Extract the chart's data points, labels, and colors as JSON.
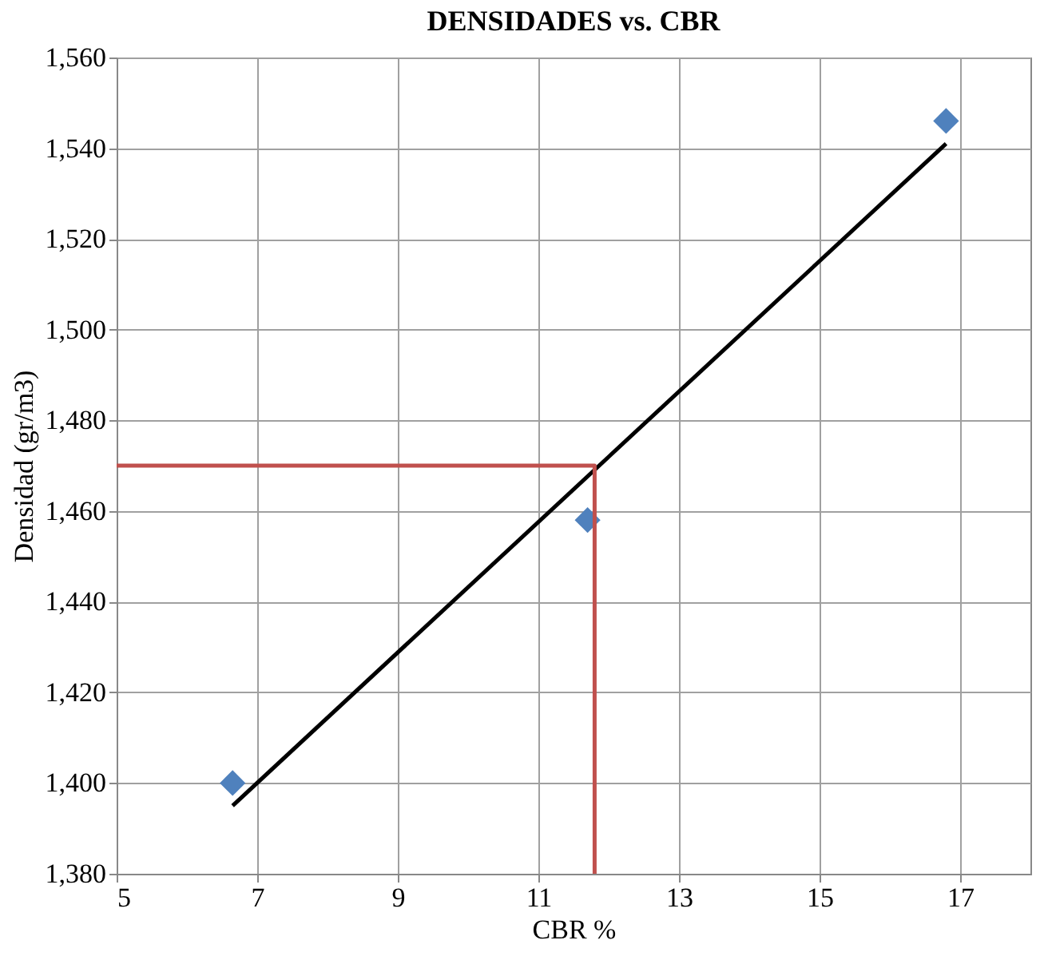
{
  "chart_data": {
    "type": "scatter",
    "title": "DENSIDADES  vs. CBR",
    "xlabel": "CBR %",
    "ylabel": "Densidad (gr/m3)",
    "x": [
      6.65,
      11.7,
      16.8
    ],
    "series": [
      {
        "color": "#4f81bd",
        "marker": "diamond",
        "values": [
          1400,
          1458,
          1546
        ]
      },
      {
        "type": "line",
        "color": "#000000",
        "marker": "none",
        "line_style": "solid",
        "x": [
          6.65,
          16.8
        ],
        "values": [
          1395,
          1541
        ]
      },
      {
        "type": "line",
        "color": "#c0504d",
        "marker": "none",
        "line_style": "solid",
        "x": [
          5,
          11.8,
          11.8
        ],
        "values": [
          1470,
          1470,
          1380
        ]
      }
    ],
    "xlim": [
      5,
      18
    ],
    "xticks": [
      5,
      7,
      9,
      11,
      13,
      15,
      17
    ],
    "ylim": [
      1380,
      1560
    ],
    "yticks": [
      {
        "value": 1380,
        "label": "1,380"
      },
      {
        "value": 1400,
        "label": "1,400"
      },
      {
        "value": 1420,
        "label": "1,420"
      },
      {
        "value": 1440,
        "label": "1,440"
      },
      {
        "value": 1460,
        "label": "1,460"
      },
      {
        "value": 1480,
        "label": "1,480"
      },
      {
        "value": 1500,
        "label": "1,500"
      },
      {
        "value": 1520,
        "label": "1,520"
      },
      {
        "value": 1540,
        "label": "1,540"
      },
      {
        "value": 1560,
        "label": "1,560"
      }
    ],
    "grid": true
  }
}
